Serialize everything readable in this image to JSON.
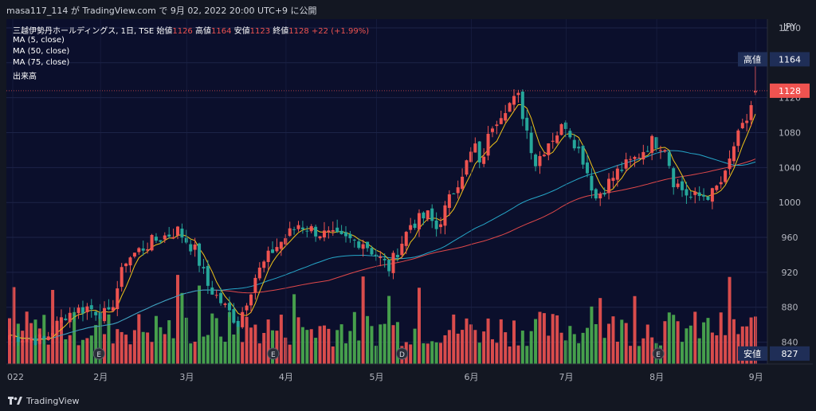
{
  "header": {
    "caption": "masa117_114 が TradingView.com で 9月 02, 2022 20:00 UTC+9 に公開"
  },
  "legend": {
    "symbol": "三越伊勢丹ホールディングス, 1日, TSE",
    "open_label": "始値",
    "open": "1126",
    "high_label": "高値",
    "high": "1164",
    "low_label": "安値",
    "low": "1123",
    "close_label": "終値",
    "close": "1128",
    "change": "+22 (+1.99%)",
    "indicators": [
      "MA (5, close)",
      "MA (50, close)",
      "MA (75, close)",
      "出来高"
    ]
  },
  "price_axis": {
    "currency": "JPY",
    "ticks": [
      "1200",
      "1160",
      "1120",
      "1080",
      "1040",
      "1000",
      "960",
      "920",
      "880",
      "840"
    ],
    "high_tag": {
      "label": "高値",
      "value": "1164"
    },
    "last_tag": {
      "value": "1128"
    },
    "low_tag": {
      "label": "安値",
      "value": "827"
    }
  },
  "time_axis": {
    "labels": [
      "2022",
      "2月",
      "3月",
      "4月",
      "5月",
      "6月",
      "7月",
      "8月",
      "9月"
    ]
  },
  "events": [
    "E",
    "E",
    "D",
    "E",
    "E"
  ],
  "brand": {
    "name": "TradingView"
  },
  "colors": {
    "up": "#ef5350",
    "down": "#26a69a",
    "vol_up": "#ef5350",
    "vol_down": "#4caf50",
    "ma5": "#f0c419",
    "ma50": "#26a7c9",
    "ma75": "#e0484a",
    "background": "#0b0f2c"
  },
  "chart_data": {
    "type": "candlestick",
    "title": "三越伊勢丹ホールディングス, 1日, TSE",
    "x_start": "2022-01-04",
    "x_end": "2022-09-02",
    "ylim": [
      815,
      1210
    ],
    "y_ticks": [
      840,
      880,
      920,
      960,
      1000,
      1040,
      1080,
      1120,
      1160,
      1200
    ],
    "y_unit": "JPY",
    "waypoints": [
      [
        "2022-01-04",
        848
      ],
      [
        "2022-01-14",
        842
      ],
      [
        "2022-01-21",
        872
      ],
      [
        "2022-01-28",
        880
      ],
      [
        "2022-02-04",
        870
      ],
      [
        "2022-02-10",
        935
      ],
      [
        "2022-02-18",
        955
      ],
      [
        "2022-02-28",
        968
      ],
      [
        "2022-03-04",
        945
      ],
      [
        "2022-03-09",
        905
      ],
      [
        "2022-03-15",
        880
      ],
      [
        "2022-03-18",
        862
      ],
      [
        "2022-03-24",
        915
      ],
      [
        "2022-03-30",
        945
      ],
      [
        "2022-04-07",
        975
      ],
      [
        "2022-04-14",
        965
      ],
      [
        "2022-04-21",
        958
      ],
      [
        "2022-04-28",
        955
      ],
      [
        "2022-05-02",
        945
      ],
      [
        "2022-05-06",
        925
      ],
      [
        "2022-05-13",
        975
      ],
      [
        "2022-05-19",
        985
      ],
      [
        "2022-05-23",
        970
      ],
      [
        "2022-05-30",
        1025
      ],
      [
        "2022-06-03",
        1065
      ],
      [
        "2022-06-06",
        1040
      ],
      [
        "2022-06-09",
        1090
      ],
      [
        "2022-06-14",
        1110
      ],
      [
        "2022-06-17",
        1120
      ],
      [
        "2022-06-23",
        1045
      ],
      [
        "2022-06-28",
        1070
      ],
      [
        "2022-07-04",
        1090
      ],
      [
        "2022-07-08",
        1050
      ],
      [
        "2022-07-13",
        1005
      ],
      [
        "2022-07-20",
        1035
      ],
      [
        "2022-07-26",
        1050
      ],
      [
        "2022-08-01",
        1070
      ],
      [
        "2022-08-04",
        1065
      ],
      [
        "2022-08-08",
        1025
      ],
      [
        "2022-08-12",
        1005
      ],
      [
        "2022-08-19",
        1010
      ],
      [
        "2022-08-24",
        1030
      ],
      [
        "2022-08-26",
        1065
      ],
      [
        "2022-08-31",
        1095
      ],
      [
        "2022-09-02",
        1128
      ]
    ],
    "last_candle": {
      "date": "2022-09-02",
      "open": 1126,
      "high": 1164,
      "low": 1123,
      "close": 1128
    },
    "period_low": 827,
    "series": [
      {
        "name": "MA (5, close)",
        "period": 5
      },
      {
        "name": "MA (50, close)",
        "period": 50
      },
      {
        "name": "MA (75, close)",
        "period": 75
      },
      {
        "name": "出来高"
      }
    ]
  }
}
